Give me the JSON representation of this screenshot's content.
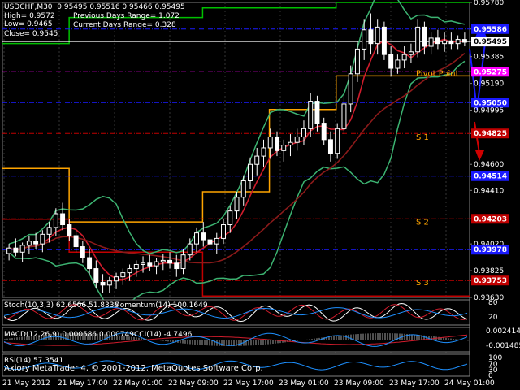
{
  "header": {
    "symbol_line": "USDCHF,M30  0.95495 0.95516 0.95466 0.95495",
    "high": "High= 0.9572",
    "low": "Low= 0.9465",
    "close": "Close= 0.9545",
    "prev_range": "Previous Days Range= 1.072",
    "curr_range": "Current Days Range= 0.328"
  },
  "colors": {
    "background": "#000000",
    "candle": "#ffffff",
    "bollinger": "#3cb371",
    "ma_fast": "#d01c2c",
    "ma_slow": "#8b1a1a",
    "pivot": "#ffa500",
    "resistance": "#00c000",
    "support": "#c00000",
    "close_line": "#ffffff",
    "price_label_bg": "#ffffff"
  },
  "chart_data": {
    "type": "candlestick",
    "ylim": [
      0.9363,
      0.9578
    ],
    "y_ticks": [
      "0.95780",
      "0.95586",
      "0.95495",
      "0.95385",
      "0.95275",
      "0.95190",
      "0.95050",
      "0.94995",
      "0.94825",
      "0.94600",
      "0.94514",
      "0.94410",
      "0.94203",
      "0.94020",
      "0.93978",
      "0.93825",
      "0.93753",
      "0.93630"
    ],
    "x_labels": [
      "21 May 2012",
      "21 May 17:00",
      "22 May 01:00",
      "22 May 09:00",
      "22 May 17:00",
      "23 May 01:00",
      "23 May 09:00",
      "23 May 17:00",
      "24 May 01:00"
    ],
    "levels": [
      {
        "label": "0.95586",
        "value": 0.95586,
        "color": "#1a1aff",
        "style": "dash-dot"
      },
      {
        "label": "0.95495",
        "value": 0.95495,
        "color": "#ffffff",
        "style": "solid",
        "highlight": "current"
      },
      {
        "label": "0.95275",
        "value": 0.95275,
        "color": "#ff00ff",
        "style": "dash-dot"
      },
      {
        "label": "0.95050",
        "value": 0.9505,
        "color": "#1a1aff",
        "style": "dash-dot"
      },
      {
        "label": "0.94825",
        "value": 0.94825,
        "color": "#c00000",
        "style": "dash-dot"
      },
      {
        "label": "0.94514",
        "value": 0.94514,
        "color": "#1a1aff",
        "style": "dash-dot"
      },
      {
        "label": "0.94203",
        "value": 0.94203,
        "color": "#c00000",
        "style": "dash-dot"
      },
      {
        "label": "0.93978",
        "value": 0.93978,
        "color": "#1a1aff",
        "style": "dash-dot"
      },
      {
        "label": "0.93753",
        "value": 0.93753,
        "color": "#c00000",
        "style": "dash-dot"
      }
    ],
    "pivot_labels": [
      {
        "text": "Pivot Point",
        "value": 0.95245
      },
      {
        "text": "S 1",
        "value": 0.9478
      },
      {
        "text": "S 2",
        "value": 0.9416
      },
      {
        "text": "S 3",
        "value": 0.9372
      }
    ],
    "candles": [
      [
        0.9395,
        0.9402,
        0.939,
        0.9399
      ],
      [
        0.9399,
        0.9406,
        0.9393,
        0.9396
      ],
      [
        0.9396,
        0.9403,
        0.9389,
        0.9401
      ],
      [
        0.9401,
        0.9408,
        0.9395,
        0.9404
      ],
      [
        0.9404,
        0.941,
        0.9398,
        0.9402
      ],
      [
        0.9402,
        0.9412,
        0.9396,
        0.9409
      ],
      [
        0.9409,
        0.9418,
        0.9403,
        0.9414
      ],
      [
        0.9414,
        0.9428,
        0.9408,
        0.9424
      ],
      [
        0.9424,
        0.9432,
        0.9412,
        0.9416
      ],
      [
        0.9416,
        0.942,
        0.9404,
        0.9408
      ],
      [
        0.9408,
        0.9412,
        0.9396,
        0.94
      ],
      [
        0.94,
        0.9404,
        0.9388,
        0.9392
      ],
      [
        0.9392,
        0.9398,
        0.938,
        0.9384
      ],
      [
        0.9384,
        0.939,
        0.937,
        0.9374
      ],
      [
        0.9374,
        0.938,
        0.9366,
        0.9372
      ],
      [
        0.9372,
        0.9378,
        0.9366,
        0.9375
      ],
      [
        0.9375,
        0.9381,
        0.9369,
        0.9378
      ],
      [
        0.9378,
        0.9384,
        0.9372,
        0.9381
      ],
      [
        0.9381,
        0.9387,
        0.9375,
        0.9384
      ],
      [
        0.9384,
        0.939,
        0.9378,
        0.9387
      ],
      [
        0.9387,
        0.9393,
        0.9381,
        0.9388
      ],
      [
        0.9388,
        0.9394,
        0.9382,
        0.9386
      ],
      [
        0.9386,
        0.9392,
        0.938,
        0.9389
      ],
      [
        0.9389,
        0.9395,
        0.9383,
        0.939
      ],
      [
        0.939,
        0.9396,
        0.9384,
        0.9388
      ],
      [
        0.9388,
        0.9394,
        0.9378,
        0.9384
      ],
      [
        0.9384,
        0.9398,
        0.938,
        0.9394
      ],
      [
        0.9394,
        0.9406,
        0.939,
        0.9402
      ],
      [
        0.9402,
        0.9414,
        0.9396,
        0.941
      ],
      [
        0.941,
        0.9418,
        0.94,
        0.9405
      ],
      [
        0.9405,
        0.9412,
        0.9396,
        0.9402
      ],
      [
        0.9402,
        0.941,
        0.9395,
        0.9406
      ],
      [
        0.9406,
        0.942,
        0.9402,
        0.9416
      ],
      [
        0.9416,
        0.943,
        0.941,
        0.9426
      ],
      [
        0.9426,
        0.944,
        0.942,
        0.9436
      ],
      [
        0.9436,
        0.9452,
        0.943,
        0.9448
      ],
      [
        0.9448,
        0.9465,
        0.9442,
        0.946
      ],
      [
        0.946,
        0.9472,
        0.9452,
        0.9466
      ],
      [
        0.9466,
        0.9478,
        0.9458,
        0.9472
      ],
      [
        0.9472,
        0.9486,
        0.9464,
        0.948
      ],
      [
        0.948,
        0.9484,
        0.9466,
        0.947
      ],
      [
        0.947,
        0.9478,
        0.9462,
        0.9474
      ],
      [
        0.9474,
        0.9482,
        0.9466,
        0.9476
      ],
      [
        0.9476,
        0.9486,
        0.947,
        0.948
      ],
      [
        0.948,
        0.9492,
        0.9474,
        0.9486
      ],
      [
        0.9486,
        0.9512,
        0.948,
        0.9506
      ],
      [
        0.9506,
        0.951,
        0.9484,
        0.949
      ],
      [
        0.949,
        0.9494,
        0.9474,
        0.9478
      ],
      [
        0.9478,
        0.9484,
        0.9462,
        0.9468
      ],
      [
        0.9468,
        0.949,
        0.9464,
        0.9486
      ],
      [
        0.9486,
        0.951,
        0.9482,
        0.9504
      ],
      [
        0.9504,
        0.9532,
        0.9498,
        0.9526
      ],
      [
        0.9526,
        0.955,
        0.952,
        0.9544
      ],
      [
        0.9544,
        0.9566,
        0.9536,
        0.9558
      ],
      [
        0.9558,
        0.957,
        0.954,
        0.9548
      ],
      [
        0.9548,
        0.9566,
        0.954,
        0.956
      ],
      [
        0.956,
        0.9564,
        0.9536,
        0.954
      ],
      [
        0.954,
        0.9546,
        0.9524,
        0.953
      ],
      [
        0.953,
        0.954,
        0.9526,
        0.9536
      ],
      [
        0.9536,
        0.9546,
        0.953,
        0.954
      ],
      [
        0.954,
        0.9548,
        0.9534,
        0.9542
      ],
      [
        0.9542,
        0.9566,
        0.9538,
        0.956
      ],
      [
        0.956,
        0.9564,
        0.954,
        0.9546
      ],
      [
        0.9546,
        0.9556,
        0.954,
        0.9552
      ],
      [
        0.9552,
        0.9558,
        0.9544,
        0.9548
      ],
      [
        0.9548,
        0.9556,
        0.9542,
        0.955
      ],
      [
        0.955,
        0.9556,
        0.9544,
        0.9548
      ],
      [
        0.9548,
        0.9554,
        0.9544,
        0.9551
      ],
      [
        0.9551,
        0.9556,
        0.9546,
        0.9549
      ]
    ]
  },
  "indicators": {
    "stoch": {
      "label": "Stoch(10,3,3) 62.6506 51.8336",
      "scale": [
        "80",
        "20"
      ]
    },
    "momentum": {
      "label": "Momentum(14) 100.1649"
    },
    "macd": {
      "label": "MACD(12,26,9) 0.000586 0.000749",
      "scale": [
        "0.002414",
        "-0.001485"
      ]
    },
    "cci": {
      "label": "CCI(14) -4.7496"
    },
    "rsi": {
      "label": "RSI(14) 57.3541",
      "scale": [
        "100",
        "70",
        "30",
        "0"
      ]
    }
  },
  "footer": {
    "copyright": "Axiory MetaTrader 4, © 2001-2012, MetaQuotes Software Corp."
  }
}
